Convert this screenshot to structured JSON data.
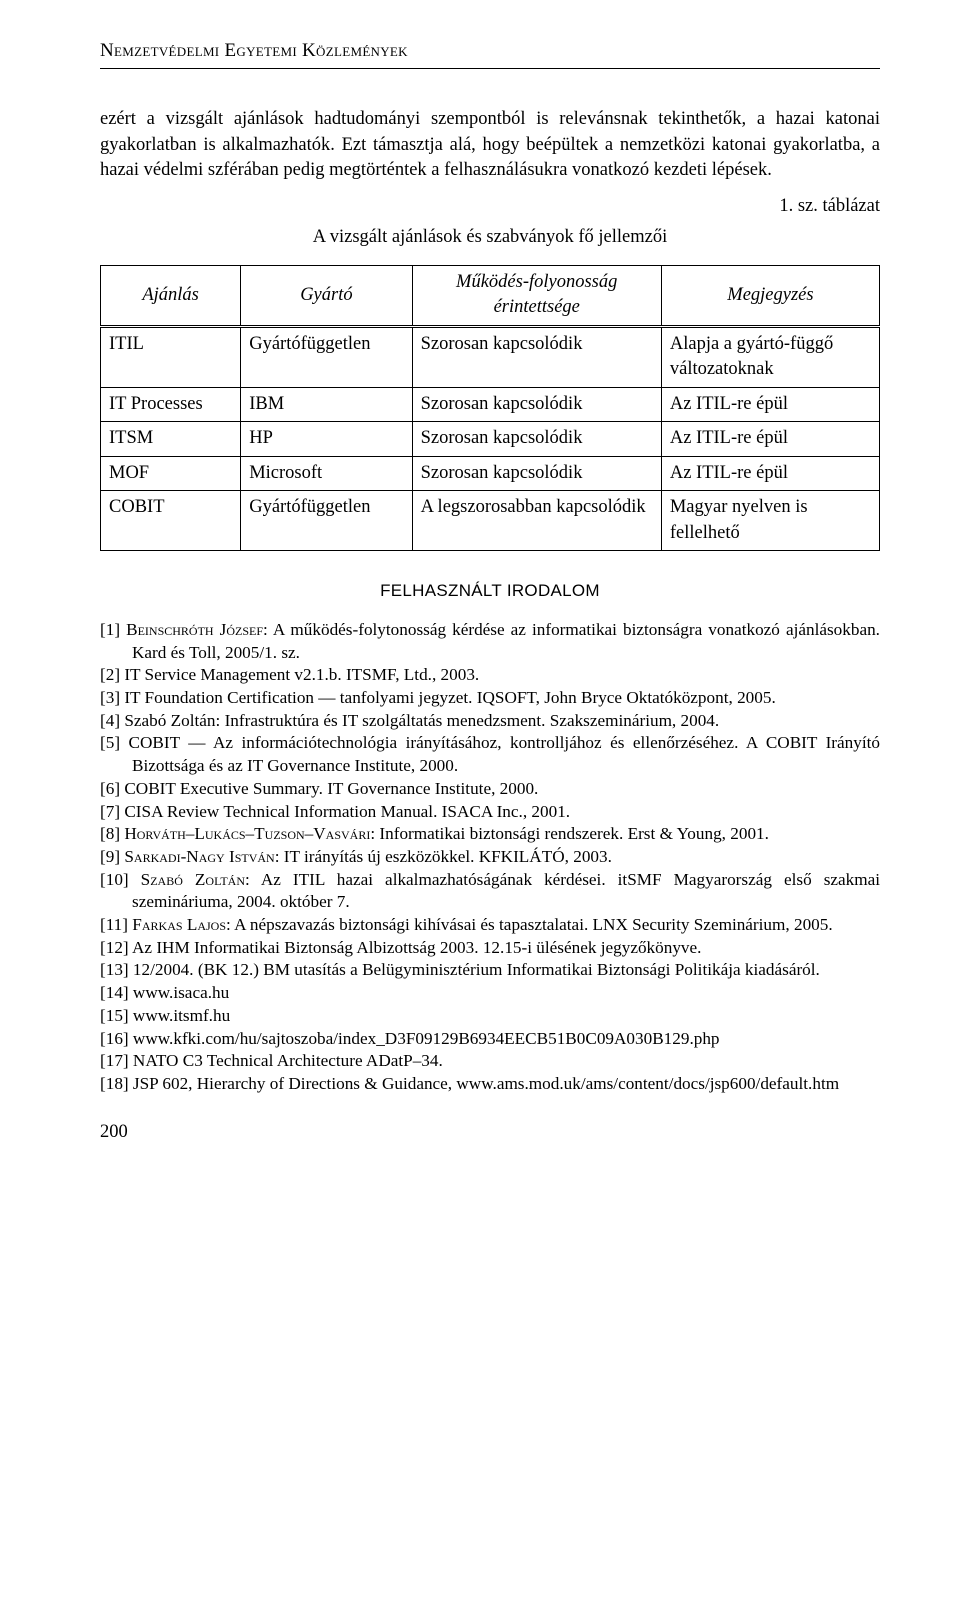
{
  "runningHeader": "Nemzetvédelmi Egyetemi Közlemények",
  "para1": "ezért a vizsgált ajánlások hadtudományi szempontból is relevánsnak tekinthetők, a hazai katonai gyakorlatban is alkalmazhatók. Ezt támasztja alá, hogy beépültek a nemzetközi katonai gyakorlatba, a hazai védelmi szférában pedig megtörténtek a felhasználásukra vonatkozó kezdeti lépések.",
  "tableNumber": "1. sz. táblázat",
  "tableTitle": "A vizsgált ajánlások és szabványok fő jellemzői",
  "table": {
    "columns": [
      "Ajánlás",
      "Gyártó",
      "Működés-folyonosság érintettsége",
      "Megjegyzés"
    ],
    "rows": [
      [
        "ITIL",
        "Gyártófüggetlen",
        "Szorosan kapcsolódik",
        "Alapja a gyártó-függő változatoknak"
      ],
      [
        "IT Processes",
        "IBM",
        "Szorosan kapcsolódik",
        "Az ITIL-re épül"
      ],
      [
        "ITSM",
        "HP",
        "Szorosan kapcsolódik",
        "Az ITIL-re épül"
      ],
      [
        "MOF",
        "Microsoft",
        "Szorosan kapcsolódik",
        "Az ITIL-re épül"
      ],
      [
        "COBIT",
        "Gyártófüggetlen",
        "A legszorosabban kapcsolódik",
        "Magyar nyelven is fellelhető"
      ]
    ],
    "col_widths": [
      "18%",
      "22%",
      "32%",
      "28%"
    ]
  },
  "refsHeading": "FELHASZNÁLT IRODALOM",
  "refs": [
    {
      "n": "[1]",
      "html": "<span class=\"smallcaps\">Beinschróth József</span>: A működés-folytonosság kérdése az informatikai biztonságra vonatkozó ajánlásokban. Kard és Toll, 2005/1. sz."
    },
    {
      "n": "[2]",
      "html": "IT Service Management v2.1.b. ITSMF, Ltd., 2003."
    },
    {
      "n": "[3]",
      "html": "IT Foundation Certification — tanfolyami jegyzet. IQSOFT, John Bryce Oktatóközpont, 2005."
    },
    {
      "n": "[4]",
      "html": "Szabó Zoltán: Infrastruktúra és IT szolgáltatás menedzsment. Szakszeminárium, 2004."
    },
    {
      "n": "[5]",
      "html": "COBIT — Az információtechnológia irányításához, kontrolljához és ellenőrzéséhez. A COBIT Irányító Bizottsága és az IT Governance Institute, 2000."
    },
    {
      "n": "[6]",
      "html": "COBIT Executive Summary. IT Governance Institute, 2000."
    },
    {
      "n": "[7]",
      "html": "CISA Review Technical Information Manual. ISACA Inc., 2001."
    },
    {
      "n": "[8]",
      "html": "<span class=\"smallcaps\">Horváth–Lukács–Tuzson–Vasvári</span>: Informatikai biztonsági rendszerek. Erst &amp; Young, 2001."
    },
    {
      "n": "[9]",
      "html": "<span class=\"smallcaps\">Sarkadi-Nagy István</span>: IT irányítás új eszközökkel. KFKILÁTÓ, 2003."
    },
    {
      "n": "[10]",
      "html": "<span class=\"smallcaps\">Szabó Zoltán</span>: Az ITIL hazai alkalmazhatóságának kérdései. itSMF Magyarország első szakmai szemináriuma, 2004. október 7."
    },
    {
      "n": "[11]",
      "html": "<span class=\"smallcaps\">Farkas Lajos</span>: A népszavazás biztonsági kihívásai és tapasztalatai. LNX Security Szeminárium, 2005."
    },
    {
      "n": "[12]",
      "html": "Az IHM Informatikai Biztonság Albizottság 2003. 12.15-i ülésének jegyzőkönyve."
    },
    {
      "n": "[13]",
      "html": "12/2004. (BK 12.) BM utasítás a Belügyminisztérium Informatikai Biztonsági Politikája kiadásáról."
    },
    {
      "n": "[14]",
      "html": "www.isaca.hu"
    },
    {
      "n": "[15]",
      "html": "www.itsmf.hu"
    },
    {
      "n": "[16]",
      "html": "www.kfki.com/hu/sajtoszoba/index_D3F09129B6934EECB51B0C09A030B129.php"
    },
    {
      "n": "[17]",
      "html": "NATO C3 Technical Architecture ADatP–34."
    },
    {
      "n": "[18]",
      "html": "JSP 602, Hierarchy of Directions &amp; Guidance, www.ams.mod.uk/ams/content/docs/jsp600/default.htm"
    }
  ],
  "pageNumber": "200"
}
